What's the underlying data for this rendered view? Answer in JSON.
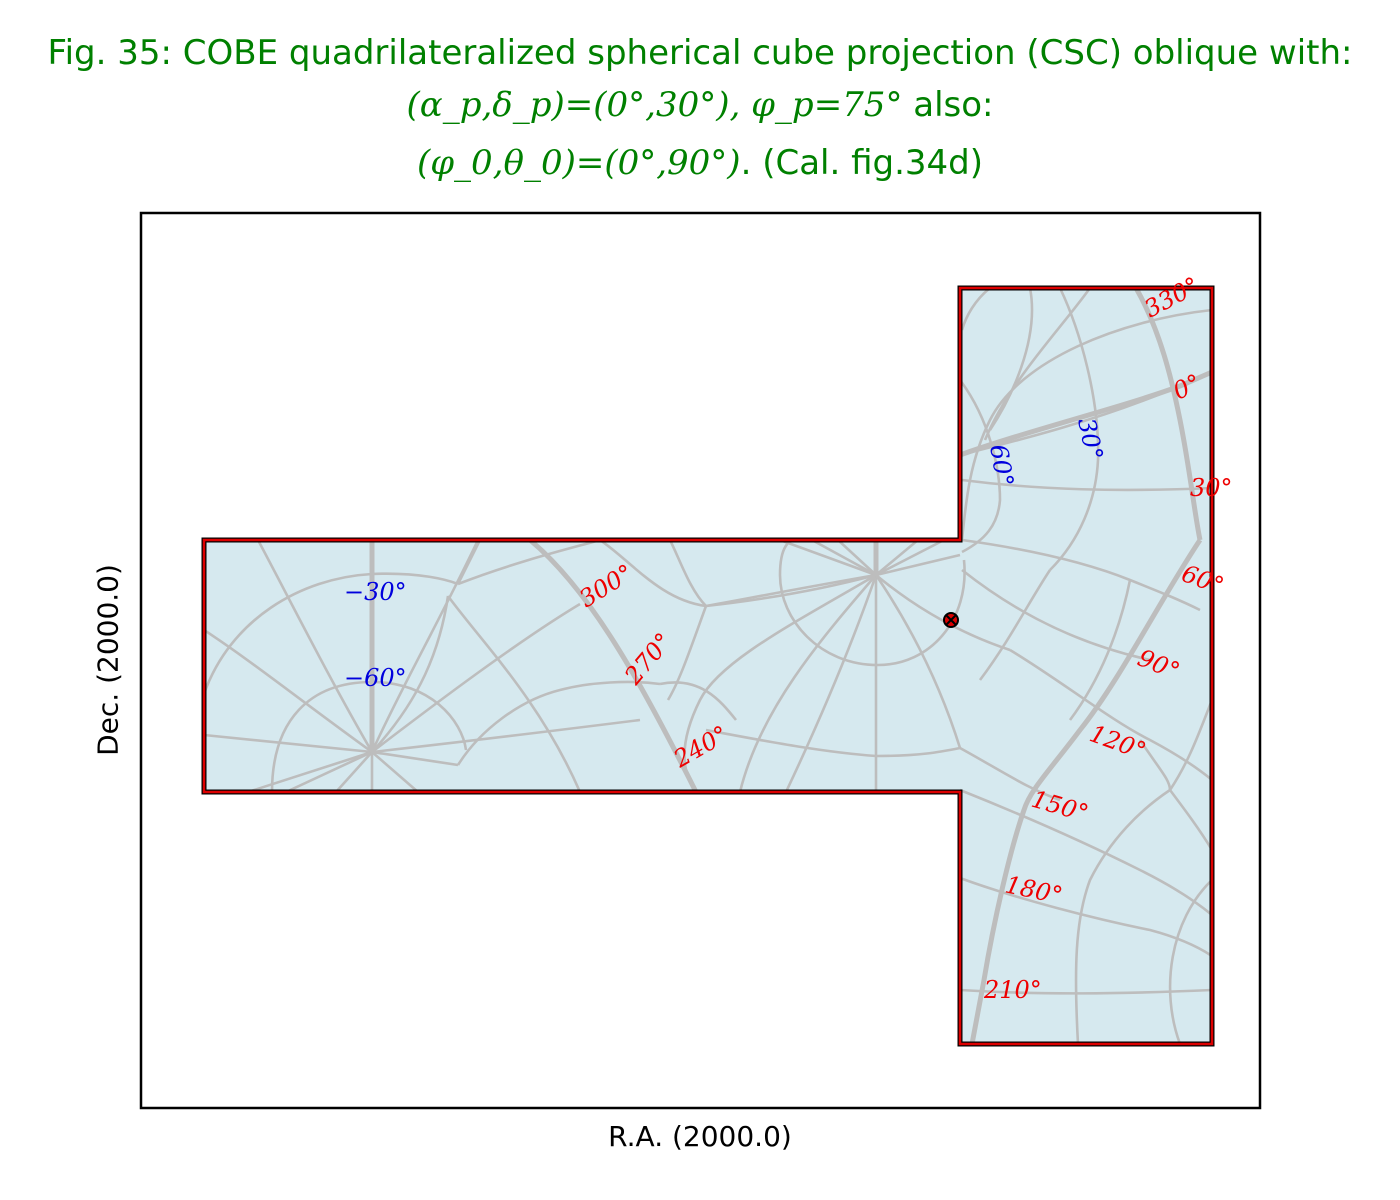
{
  "title": {
    "line1": "Fig. 35: COBE quadrilateralized spherical cube projection (CSC) oblique with:",
    "line2_math": "(α_p,δ_p)=(0°,30°), φ_p=75°",
    "line2_text": " also:",
    "line3_math": "(φ_0,θ_0)=(0°,90°)",
    "line3_text": ". (Cal. fig.34d)"
  },
  "axes": {
    "xlabel": "R.A. (2000.0)",
    "ylabel": "Dec. (2000.0)"
  },
  "colors": {
    "title": "#008000",
    "ra_labels": "#ee0000",
    "dec_labels": "#0000dd",
    "face_fill": "#d6e9ef",
    "boundary": "#dd0000",
    "graticule": "#bfbfbf"
  },
  "ra_labels": [
    "330°",
    "0°",
    "30°",
    "60°",
    "90°",
    "120°",
    "150°",
    "180°",
    "210°",
    "240°",
    "270°",
    "300°"
  ],
  "dec_labels": [
    "−30°",
    "−60°",
    "60°",
    "30°"
  ],
  "marker": "projection-center-marker"
}
